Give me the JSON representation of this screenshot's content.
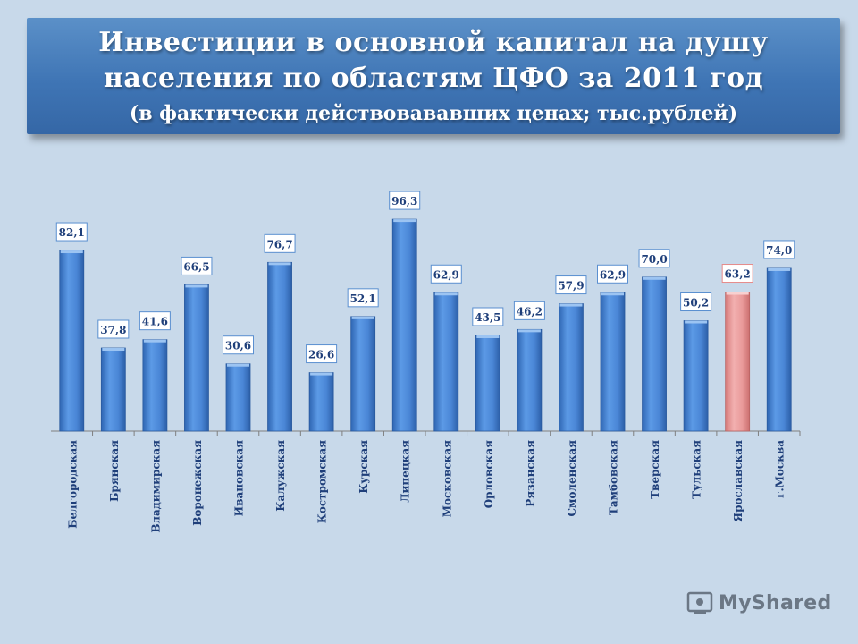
{
  "title": {
    "line1": "Инвестиции в основной капитал на душу",
    "line2": "населения по областям ЦФО за 2011 год",
    "line3": "(в фактически действовававших ценах; тыс.рублей)"
  },
  "watermark": {
    "text": "MyShared",
    "icon": "share-icon"
  },
  "chart_data": {
    "type": "bar",
    "categories": [
      "Белгородская",
      "Брянская",
      "Владимирская",
      "Воронежская",
      "Ивановская",
      "Калужская",
      "Костромская",
      "Курская",
      "Липецкая",
      "Московская",
      "Орловская",
      "Рязанская",
      "Смоленская",
      "Тамбовская",
      "Тверская",
      "Тульская",
      "Ярославская",
      "г.Москва"
    ],
    "values": [
      82.1,
      37.8,
      41.6,
      66.5,
      30.6,
      76.7,
      26.6,
      52.1,
      96.3,
      62.9,
      43.5,
      46.2,
      57.9,
      62.9,
      70.0,
      50.2,
      63.2,
      74.0
    ],
    "labels": [
      "82,1",
      "37,8",
      "41,6",
      "66,5",
      "30,6",
      "76,7",
      "26,6",
      "52,1",
      "96,3",
      "62,9",
      "43,5",
      "46,2",
      "57,9",
      "62,9",
      "70,0",
      "50,2",
      "63,2",
      "74,0"
    ],
    "highlight_index": 16,
    "colors": {
      "bar": "#4a86d6",
      "highlight": "#e99a9a",
      "label_text": "#1f3f7a"
    },
    "ylim": [
      0,
      100
    ],
    "grid": false
  }
}
